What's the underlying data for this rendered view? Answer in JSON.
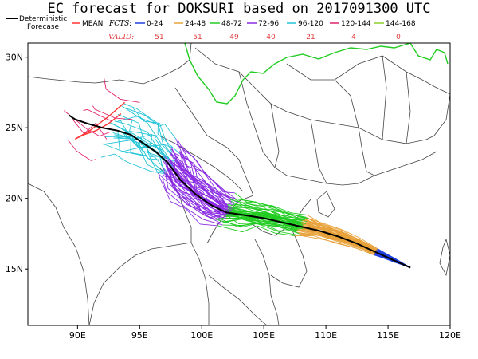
{
  "title": "EC forecast for DOKSURI based on 2017091300 UTC",
  "legend": {
    "deterministic_line1": "Deterministic",
    "deterministic_line2": "Forecase",
    "mean": "MEAN",
    "fcts_label": "FCTS:",
    "valid_label": "VALID:",
    "bins": [
      {
        "label": "0-24",
        "color": "#1f3fe0",
        "valid": "51"
      },
      {
        "label": "24-48",
        "color": "#e8a23a",
        "valid": "51"
      },
      {
        "label": "48-72",
        "color": "#22cc22",
        "valid": "49"
      },
      {
        "label": "72-96",
        "color": "#8a2be2",
        "valid": "40"
      },
      {
        "label": "96-120",
        "color": "#22c4d6",
        "valid": "21"
      },
      {
        "label": "120-144",
        "color": "#e0246e",
        "valid": "4"
      },
      {
        "label": "144-168",
        "color": "#8ad12a",
        "valid": "0"
      }
    ],
    "deterministic_color": "#000000",
    "mean_color": "#ff3333"
  },
  "map": {
    "lon_range": [
      86,
      120
    ],
    "lat_range": [
      11,
      31
    ],
    "x_ticks": [
      "90E",
      "95E",
      "100E",
      "105E",
      "110E",
      "115E",
      "120E"
    ],
    "y_ticks": [
      "15N",
      "20N",
      "25N",
      "30N"
    ],
    "border_color": "#444444",
    "china_border_color": "#22cc22"
  },
  "deterministic_track": [
    [
      116.8,
      15.1
    ],
    [
      115.5,
      15.6
    ],
    [
      114.0,
      16.2
    ],
    [
      112.5,
      16.8
    ],
    [
      111.0,
      17.3
    ],
    [
      109.5,
      17.7
    ],
    [
      108.0,
      18.0
    ],
    [
      106.5,
      18.3
    ],
    [
      105.0,
      18.6
    ],
    [
      103.5,
      18.8
    ],
    [
      102.0,
      19.0
    ],
    [
      100.8,
      19.5
    ],
    [
      99.5,
      20.3
    ],
    [
      98.3,
      21.3
    ],
    [
      97.3,
      22.5
    ],
    [
      96.3,
      23.3
    ],
    [
      95.3,
      23.9
    ],
    [
      94.3,
      24.5
    ],
    [
      93.2,
      24.8
    ],
    [
      92.0,
      25.0
    ],
    [
      90.8,
      25.3
    ],
    [
      89.8,
      25.6
    ],
    [
      89.3,
      25.9
    ]
  ],
  "mean_track": [
    [
      93.5,
      26.0
    ],
    [
      92.5,
      25.3
    ],
    [
      91.5,
      24.8
    ],
    [
      90.5,
      24.5
    ],
    [
      89.8,
      24.2
    ],
    [
      91.0,
      24.8
    ],
    [
      92.5,
      25.8
    ],
    [
      93.8,
      26.8
    ]
  ]
}
